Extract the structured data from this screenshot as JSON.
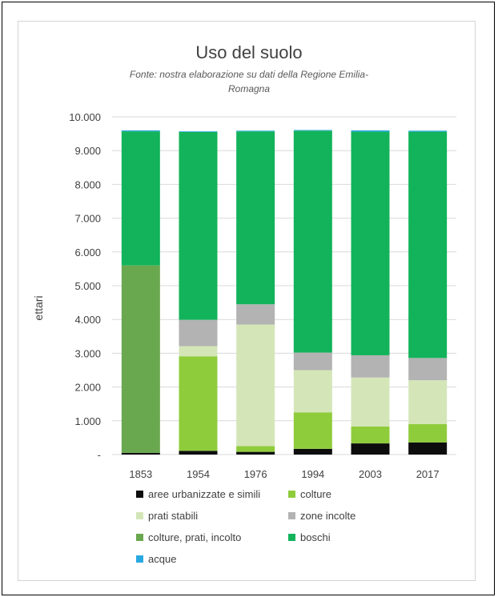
{
  "chart_data": {
    "type": "bar",
    "stacked": true,
    "title": "Uso del suolo",
    "subtitle_lines": [
      "Fonte: nostra elaborazione su dati della Regione Emilia-",
      "Romagna"
    ],
    "xlabel": "",
    "ylabel": "ettari",
    "ylim": [
      0,
      10000
    ],
    "y_ticks": [
      "-",
      "1.000",
      "2.000",
      "3.000",
      "4.000",
      "5.000",
      "6.000",
      "7.000",
      "8.000",
      "9.000",
      "10.000"
    ],
    "categories": [
      "1853",
      "1954",
      "1976",
      "1994",
      "2003",
      "2017"
    ],
    "grid": true,
    "legend_position": "bottom",
    "series": [
      {
        "name": "aree urbanizzate e simili",
        "color": "#0d0d0d",
        "values": [
          50,
          110,
          80,
          170,
          330,
          360
        ]
      },
      {
        "name": "colture",
        "color": "#8fcc3c",
        "values": [
          0,
          2800,
          170,
          1080,
          500,
          540
        ]
      },
      {
        "name": "prati stabili",
        "color": "#d4e6b8",
        "values": [
          0,
          300,
          3600,
          1250,
          1450,
          1300
        ]
      },
      {
        "name": "zone incolte",
        "color": "#b3b3b3",
        "values": [
          0,
          780,
          600,
          520,
          660,
          660
        ]
      },
      {
        "name": "colture, prati, incolto",
        "color": "#6aa84f",
        "values": [
          5550,
          0,
          0,
          0,
          0,
          0
        ]
      },
      {
        "name": "boschi",
        "color": "#12b35a",
        "values": [
          3970,
          5560,
          5120,
          6570,
          6620,
          6700
        ]
      },
      {
        "name": "acque",
        "color": "#2aa9e0",
        "values": [
          30,
          20,
          20,
          20,
          40,
          30
        ]
      }
    ]
  }
}
